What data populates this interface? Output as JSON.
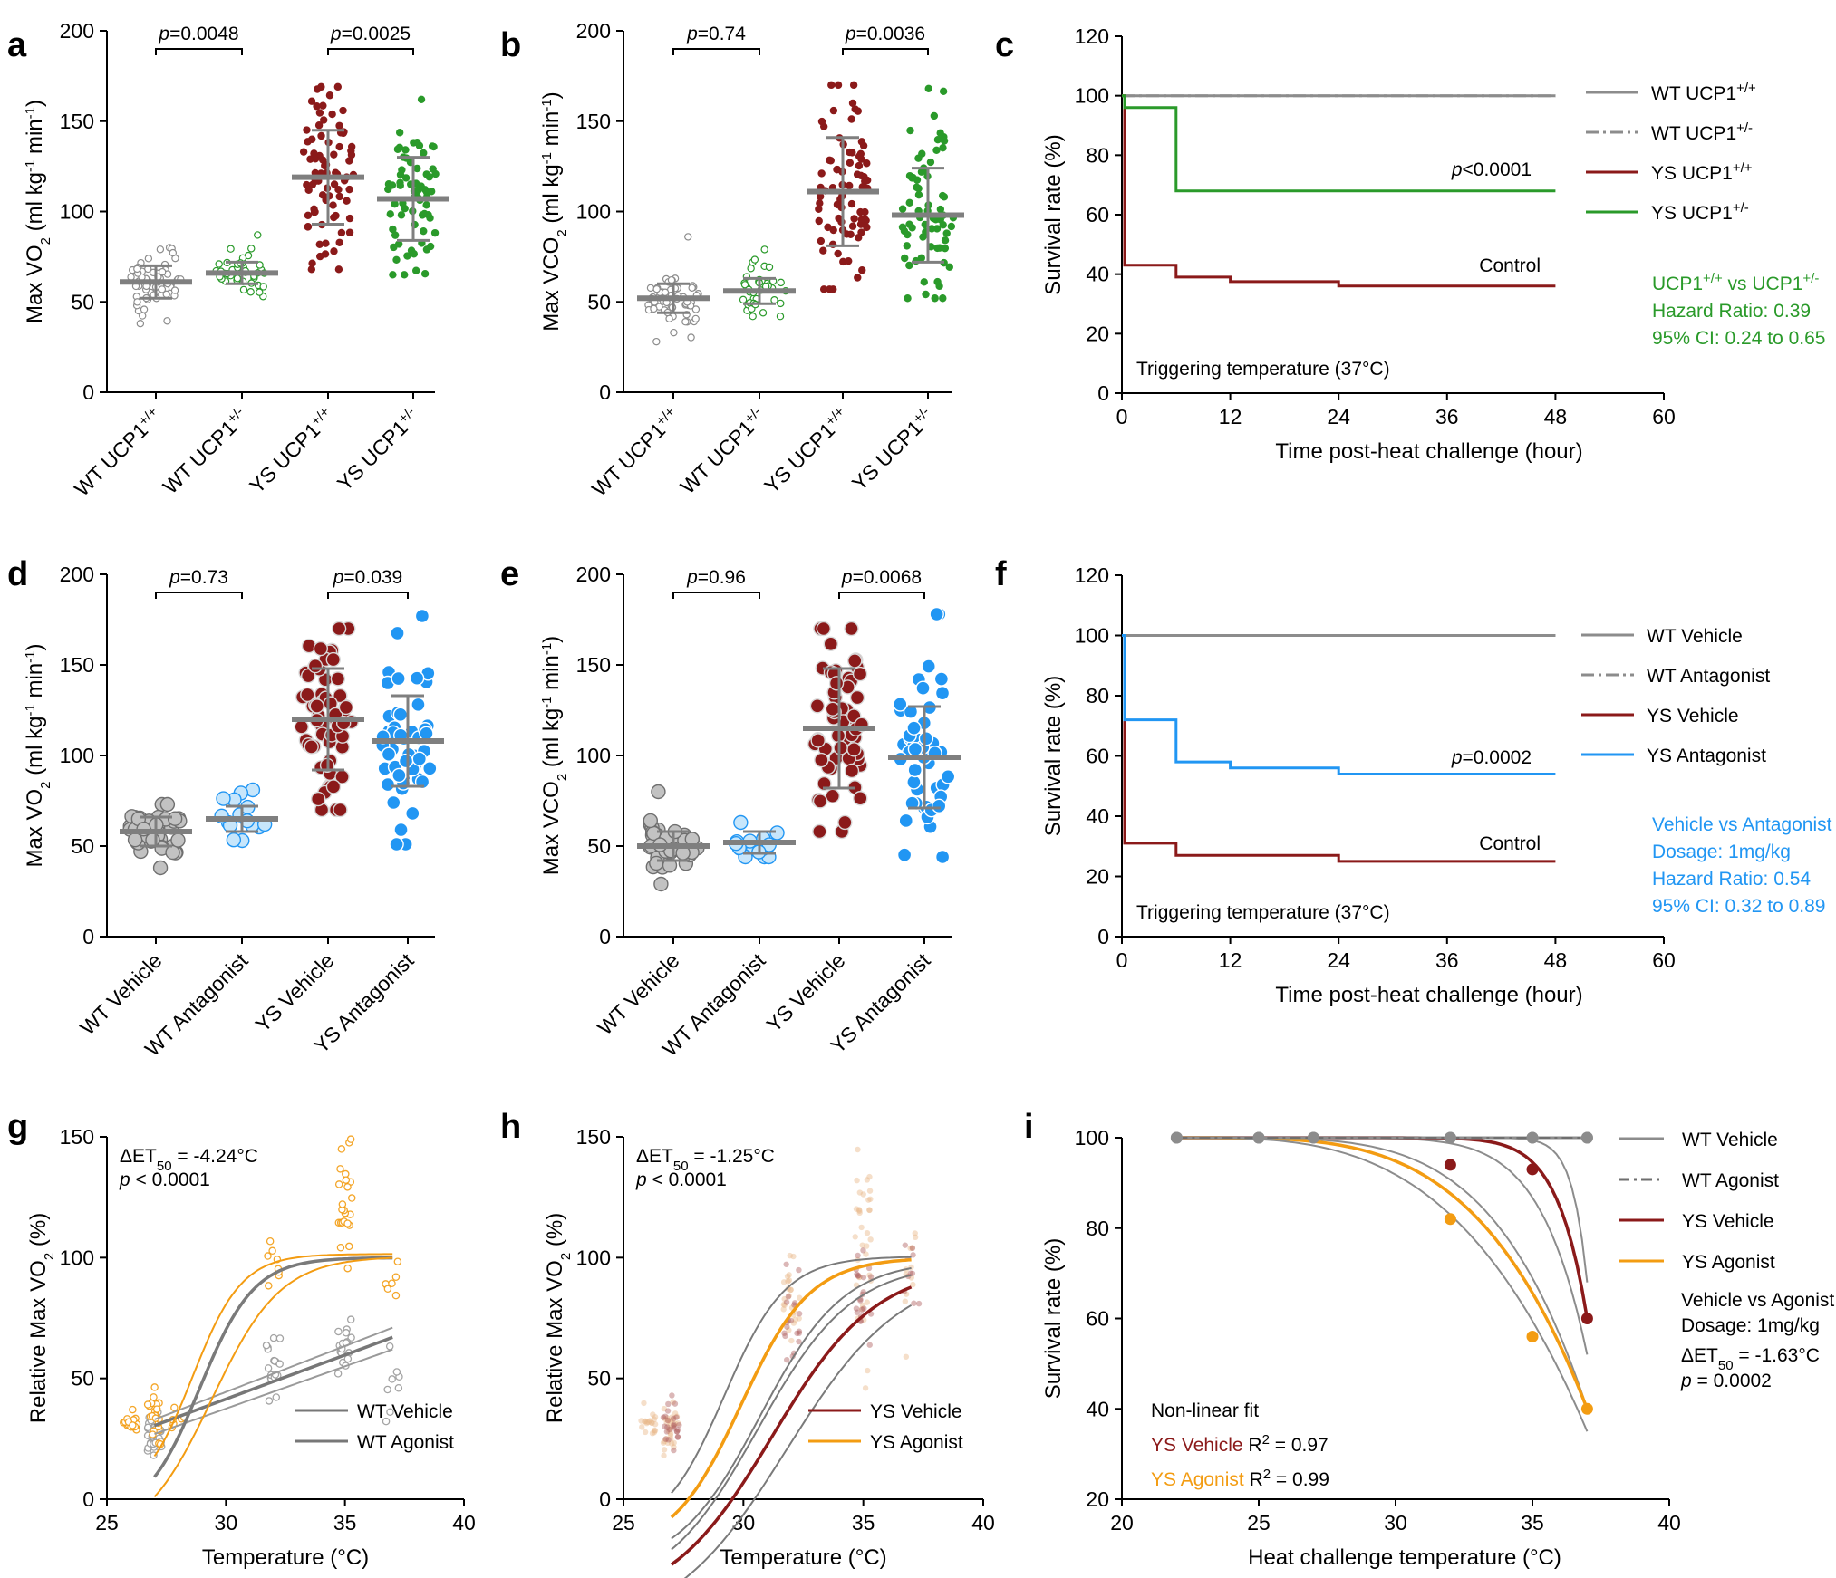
{
  "colors": {
    "wt": "#8c8c8c",
    "wt_dark": "#6e6e6e",
    "ys_red": "#8b1a1a",
    "green": "#2a9a2a",
    "blue": "#2196f3",
    "orange": "#f39c12",
    "mean_bar": "#7f7f7f"
  },
  "panels": {
    "a": {
      "label": "a",
      "chart_data": {
        "type": "scatter",
        "ylabel": "Max VO2 (ml kg-1 min-1)",
        "ylim": [
          0,
          200
        ],
        "yticks": [
          0,
          50,
          100,
          150,
          200
        ],
        "categories": [
          "WT UCP1+/+",
          "WT UCP1+/-",
          "YS UCP1+/+",
          "YS UCP1+/-"
        ],
        "means": [
          61,
          66,
          119,
          107
        ],
        "sd": [
          9,
          6,
          26,
          23
        ],
        "ranges": [
          [
            38,
            80
          ],
          [
            53,
            87
          ],
          [
            68,
            169
          ],
          [
            65,
            162
          ]
        ],
        "n": [
          60,
          40,
          80,
          70
        ],
        "comparisons": [
          {
            "label": "p=0.0048"
          },
          {
            "label": "p=0.0025"
          }
        ]
      }
    },
    "b": {
      "label": "b",
      "chart_data": {
        "type": "scatter",
        "ylabel": "Max VCO2 (ml kg-1 min-1)",
        "ylim": [
          0,
          200
        ],
        "yticks": [
          0,
          50,
          100,
          150,
          200
        ],
        "categories": [
          "WT UCP1+/+",
          "WT UCP1+/-",
          "YS UCP1+/+",
          "YS UCP1+/-"
        ],
        "means": [
          52,
          56,
          111,
          98
        ],
        "sd": [
          8,
          7,
          30,
          26
        ],
        "ranges": [
          [
            28,
            86
          ],
          [
            42,
            79
          ],
          [
            57,
            170
          ],
          [
            52,
            168
          ]
        ],
        "n": [
          60,
          40,
          80,
          70
        ],
        "comparisons": [
          {
            "label": "p=0.74"
          },
          {
            "label": "p=0.0036"
          }
        ]
      }
    },
    "c": {
      "label": "c",
      "chart_data": {
        "type": "line",
        "xlabel": "Time post-heat challenge (hour)",
        "ylabel": "Survival rate (%)",
        "xlim": [
          0,
          60
        ],
        "ylim": [
          0,
          120
        ],
        "xticks": [
          0,
          12,
          24,
          36,
          48,
          60
        ],
        "yticks": [
          0,
          20,
          40,
          60,
          80,
          100,
          120
        ],
        "series": [
          {
            "name": "WT UCP1+/+",
            "style": "solid",
            "points": [
              [
                0,
                100
              ],
              [
                48,
                100
              ]
            ]
          },
          {
            "name": "WT UCP1+/-",
            "style": "dashdot",
            "points": [
              [
                0,
                100
              ],
              [
                48,
                100
              ]
            ]
          },
          {
            "name": "YS UCP1+/+",
            "style": "solid",
            "points": [
              [
                0,
                100
              ],
              [
                0.3,
                100
              ],
              [
                0.3,
                43
              ],
              [
                2.5,
                43
              ],
              [
                2.5,
                43
              ],
              [
                6,
                43
              ],
              [
                6,
                39
              ],
              [
                12,
                39
              ],
              [
                12,
                37.5
              ],
              [
                24,
                37.5
              ],
              [
                24,
                36
              ],
              [
                48,
                36
              ]
            ]
          },
          {
            "name": "YS UCP1+/-",
            "style": "solid",
            "points": [
              [
                0,
                100
              ],
              [
                0.3,
                100
              ],
              [
                0.3,
                96
              ],
              [
                6,
                96
              ],
              [
                6,
                68
              ],
              [
                48,
                68
              ]
            ]
          }
        ],
        "annotations": {
          "pvalue": "p<0.0001",
          "control": "Control",
          "trigger": "Triggering temperature (37°C)",
          "stats": [
            "UCP1+/+ vs UCP1+/-",
            "Hazard Ratio: 0.39",
            "95% CI: 0.24 to 0.65"
          ]
        }
      }
    },
    "d": {
      "label": "d",
      "chart_data": {
        "type": "scatter",
        "ylabel": "Max VO2 (ml kg-1 min-1)",
        "ylim": [
          0,
          200
        ],
        "yticks": [
          0,
          50,
          100,
          150,
          200
        ],
        "categories": [
          "WT Vehicle",
          "WT Antagonist",
          "YS Vehicle",
          "YS Antagonist"
        ],
        "means": [
          58,
          65,
          120,
          108
        ],
        "sd": [
          8,
          7,
          28,
          25
        ],
        "ranges": [
          [
            38,
            73
          ],
          [
            53,
            81
          ],
          [
            70,
            170
          ],
          [
            51,
            177
          ]
        ],
        "n": [
          45,
          15,
          60,
          50
        ],
        "comparisons": [
          {
            "label": "p=0.73"
          },
          {
            "label": "p=0.039"
          }
        ]
      }
    },
    "e": {
      "label": "e",
      "chart_data": {
        "type": "scatter",
        "ylabel": "Max VCO2 (ml kg-1 min-1)",
        "ylim": [
          0,
          200
        ],
        "yticks": [
          0,
          50,
          100,
          150,
          200
        ],
        "categories": [
          "WT Vehicle",
          "WT Antagonist",
          "YS Vehicle",
          "YS Antagonist"
        ],
        "means": [
          50,
          52,
          115,
          99
        ],
        "sd": [
          8,
          6,
          33,
          28
        ],
        "ranges": [
          [
            29,
            80
          ],
          [
            44,
            63
          ],
          [
            58,
            170
          ],
          [
            44,
            178
          ]
        ],
        "n": [
          45,
          15,
          60,
          50
        ],
        "comparisons": [
          {
            "label": "p=0.96"
          },
          {
            "label": "p=0.0068"
          }
        ]
      }
    },
    "f": {
      "label": "f",
      "chart_data": {
        "type": "line",
        "xlabel": "Time post-heat challenge (hour)",
        "ylabel": "Survival rate (%)",
        "xlim": [
          0,
          60
        ],
        "ylim": [
          0,
          120
        ],
        "xticks": [
          0,
          12,
          24,
          36,
          48,
          60
        ],
        "yticks": [
          0,
          20,
          40,
          60,
          80,
          100,
          120
        ],
        "series": [
          {
            "name": "WT Vehicle",
            "style": "solid",
            "points": [
              [
                0,
                100
              ],
              [
                48,
                100
              ]
            ]
          },
          {
            "name": "WT Antagonist",
            "style": "dashdot",
            "points": [
              [
                0,
                100
              ],
              [
                48,
                100
              ]
            ]
          },
          {
            "name": "YS Vehicle",
            "style": "solid",
            "points": [
              [
                0,
                100
              ],
              [
                0.3,
                100
              ],
              [
                0.3,
                31
              ],
              [
                6,
                31
              ],
              [
                6,
                27
              ],
              [
                24,
                27
              ],
              [
                24,
                25
              ],
              [
                48,
                25
              ]
            ]
          },
          {
            "name": "YS Antagonist",
            "style": "solid",
            "points": [
              [
                0,
                100
              ],
              [
                0.3,
                100
              ],
              [
                0.3,
                72
              ],
              [
                6,
                72
              ],
              [
                6,
                58
              ],
              [
                12,
                58
              ],
              [
                12,
                56
              ],
              [
                24,
                56
              ],
              [
                24,
                54
              ],
              [
                48,
                54
              ]
            ]
          }
        ],
        "annotations": {
          "pvalue": "p=0.0002",
          "control": "Control",
          "trigger": "Triggering temperature (37°C)",
          "stats": [
            "Vehicle vs Antagonist",
            "Dosage: 1mg/kg",
            "Hazard Ratio: 0.54",
            "95% CI: 0.32 to 0.89"
          ]
        }
      }
    },
    "g": {
      "label": "g",
      "chart_data": {
        "type": "scatter",
        "xlabel": "Temperature (°C)",
        "ylabel": "Relative Max VO2 (%)",
        "xlim": [
          25,
          40
        ],
        "ylim": [
          0,
          150
        ],
        "xticks": [
          25,
          30,
          35,
          40
        ],
        "yticks": [
          0,
          50,
          100,
          150
        ],
        "annotations": {
          "delta": "ΔET50 = -4.24°C",
          "p": "p < 0.0001"
        },
        "legend": [
          "WT Vehicle",
          "WT Agonist"
        ]
      }
    },
    "h": {
      "label": "h",
      "chart_data": {
        "type": "scatter",
        "xlabel": "Temperature (°C)",
        "ylabel": "Relative Max VO2 (%)",
        "xlim": [
          25,
          40
        ],
        "ylim": [
          0,
          150
        ],
        "xticks": [
          25,
          30,
          35,
          40
        ],
        "yticks": [
          0,
          50,
          100,
          150
        ],
        "annotations": {
          "delta": "ΔET50 = -1.25°C",
          "p": "p < 0.0001"
        },
        "legend": [
          "YS Vehicle",
          "YS  Agonist"
        ]
      }
    },
    "i": {
      "label": "i",
      "chart_data": {
        "type": "line",
        "xlabel": "Heat challenge temperature (°C)",
        "ylabel": "Survival rate (%)",
        "xlim": [
          20,
          40
        ],
        "ylim": [
          20,
          100
        ],
        "xticks": [
          20,
          25,
          30,
          35,
          40
        ],
        "yticks": [
          20,
          40,
          60,
          80,
          100
        ],
        "series": [
          {
            "name": "WT Vehicle",
            "x": [
              22,
              25,
              27,
              32,
              35,
              37
            ],
            "y": [
              100,
              100,
              100,
              100,
              100,
              100
            ]
          },
          {
            "name": "WT Agonist",
            "x": [
              22,
              25,
              27,
              32,
              35,
              37
            ],
            "y": [
              100,
              100,
              100,
              100,
              100,
              100
            ]
          },
          {
            "name": "YS Vehicle",
            "x": [
              22,
              25,
              27,
              32,
              35,
              37
            ],
            "y": [
              100,
              100,
              100,
              94,
              93,
              60
            ]
          },
          {
            "name": "YS Agonist",
            "x": [
              22,
              25,
              27,
              32,
              35,
              37
            ],
            "y": [
              100,
              100,
              100,
              82,
              56,
              40
            ]
          }
        ],
        "annotations": {
          "stats": [
            "Vehicle vs Agonist",
            "Dosage: 1mg/kg"
          ],
          "delta": "ΔET50 = -1.63°C",
          "p": "p = 0.0002",
          "fit_title": "Non-linear fit",
          "fit_ys_vehicle": "YS Vehicle",
          "fit_ys_vehicle_r2": "R2 = 0.97",
          "fit_ys_agonist": "YS Agonist",
          "fit_ys_agonist_r2": "R2 = 0.99"
        }
      }
    }
  }
}
